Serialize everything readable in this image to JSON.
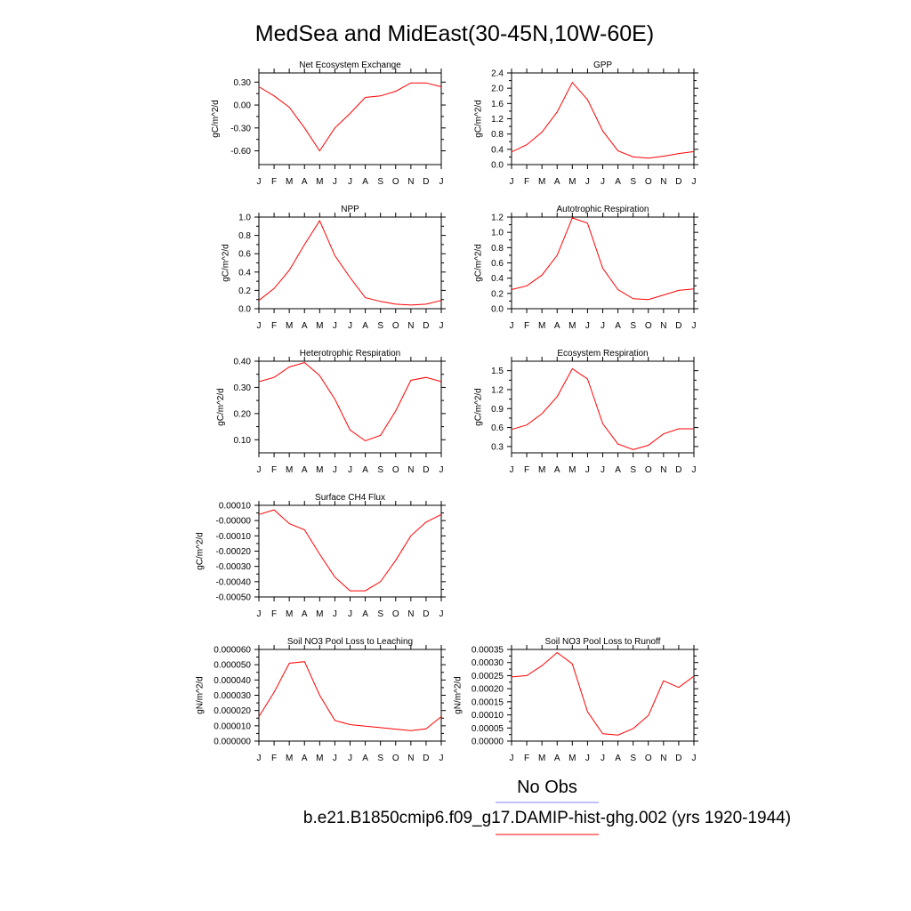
{
  "title": "MedSea and MidEast(30-45N,10W-60E)",
  "months": [
    "J",
    "F",
    "M",
    "A",
    "M",
    "J",
    "J",
    "A",
    "S",
    "O",
    "N",
    "D",
    "J"
  ],
  "legend": {
    "obs_label": "No Obs",
    "obs_color": "#8080ff",
    "model_label": "b.e21.B1850cmip6.f09_g17.DAMIP-hist-ghg.002 (yrs 1920-1944)",
    "model_color": "#ff0000"
  },
  "chart_data": [
    {
      "type": "line",
      "title": "Net Ecosystem Exchange",
      "ylabel": "gC/m^2/d",
      "ylim": [
        -0.78,
        0.42
      ],
      "yticks": [
        0.3,
        0.0,
        -0.3,
        -0.6
      ],
      "yticklabels": [
        "0.30",
        "0.00",
        "-0.30",
        "-0.60"
      ],
      "x": [
        "J",
        "F",
        "M",
        "A",
        "M",
        "J",
        "J",
        "A",
        "S",
        "O",
        "N",
        "D",
        "J"
      ],
      "series": [
        {
          "color": "#ff0000",
          "values": [
            0.24,
            0.12,
            -0.03,
            -0.3,
            -0.6,
            -0.3,
            -0.11,
            0.1,
            0.12,
            0.18,
            0.29,
            0.29,
            0.24
          ]
        }
      ]
    },
    {
      "type": "line",
      "title": "GPP",
      "ylabel": "gC/m^2/d",
      "ylim": [
        0.0,
        2.4
      ],
      "yticks": [
        0.0,
        0.4,
        0.8,
        1.2,
        1.6,
        2.0,
        2.4
      ],
      "yticklabels": [
        "0.0",
        "0.4",
        "0.8",
        "1.2",
        "1.6",
        "2.0",
        "2.4"
      ],
      "x": [
        "J",
        "F",
        "M",
        "A",
        "M",
        "J",
        "J",
        "A",
        "S",
        "O",
        "N",
        "D",
        "J"
      ],
      "series": [
        {
          "color": "#ff0000",
          "values": [
            0.33,
            0.52,
            0.85,
            1.38,
            2.15,
            1.7,
            0.88,
            0.36,
            0.2,
            0.17,
            0.22,
            0.29,
            0.34
          ]
        }
      ]
    },
    {
      "type": "line",
      "title": "NPP",
      "ylabel": "gC/m^2/d",
      "ylim": [
        0.0,
        1.0
      ],
      "yticks": [
        0.0,
        0.2,
        0.4,
        0.6,
        0.8,
        1.0
      ],
      "yticklabels": [
        "0.0",
        "0.2",
        "0.4",
        "0.6",
        "0.8",
        "1.0"
      ],
      "x": [
        "J",
        "F",
        "M",
        "A",
        "M",
        "J",
        "J",
        "A",
        "S",
        "O",
        "N",
        "D",
        "J"
      ],
      "series": [
        {
          "color": "#ff0000",
          "values": [
            0.09,
            0.22,
            0.42,
            0.7,
            0.96,
            0.58,
            0.34,
            0.12,
            0.08,
            0.05,
            0.04,
            0.05,
            0.09
          ]
        }
      ]
    },
    {
      "type": "line",
      "title": "Autotrophic Respiration",
      "ylabel": "gC/m^2/d",
      "ylim": [
        0.0,
        1.2
      ],
      "yticks": [
        0.0,
        0.2,
        0.4,
        0.6,
        0.8,
        1.0,
        1.2
      ],
      "yticklabels": [
        "0.0",
        "0.2",
        "0.4",
        "0.6",
        "0.8",
        "1.0",
        "1.2"
      ],
      "x": [
        "J",
        "F",
        "M",
        "A",
        "M",
        "J",
        "J",
        "A",
        "S",
        "O",
        "N",
        "D",
        "J"
      ],
      "series": [
        {
          "color": "#ff0000",
          "values": [
            0.25,
            0.3,
            0.44,
            0.7,
            1.19,
            1.12,
            0.53,
            0.25,
            0.13,
            0.12,
            0.18,
            0.24,
            0.26
          ]
        }
      ]
    },
    {
      "type": "line",
      "title": "Heterotrophic Respiration",
      "ylabel": "gC/m^2/d",
      "ylim": [
        0.05,
        0.4
      ],
      "yticks": [
        0.1,
        0.2,
        0.3,
        0.4
      ],
      "yticklabels": [
        "0.10",
        "0.20",
        "0.30",
        "0.40"
      ],
      "x": [
        "J",
        "F",
        "M",
        "A",
        "M",
        "J",
        "J",
        "A",
        "S",
        "O",
        "N",
        "D",
        "J"
      ],
      "series": [
        {
          "color": "#ff0000",
          "values": [
            0.322,
            0.338,
            0.378,
            0.395,
            0.345,
            0.255,
            0.137,
            0.096,
            0.117,
            0.21,
            0.327,
            0.338,
            0.322
          ]
        }
      ]
    },
    {
      "type": "line",
      "title": "Ecosystem Respiration",
      "ylabel": "gC/m^2/d",
      "ylim": [
        0.2,
        1.65
      ],
      "yticks": [
        0.3,
        0.6,
        0.9,
        1.2,
        1.5
      ],
      "yticklabels": [
        "0.3",
        "0.6",
        "0.9",
        "1.2",
        "1.5"
      ],
      "x": [
        "J",
        "F",
        "M",
        "A",
        "M",
        "J",
        "J",
        "A",
        "S",
        "O",
        "N",
        "D",
        "J"
      ],
      "series": [
        {
          "color": "#ff0000",
          "values": [
            0.57,
            0.64,
            0.82,
            1.09,
            1.53,
            1.37,
            0.66,
            0.34,
            0.25,
            0.32,
            0.5,
            0.58,
            0.58
          ]
        }
      ]
    },
    {
      "type": "line",
      "title": "Surface CH4 Flux",
      "ylabel": "gC/m^2/d",
      "ylim": [
        -0.0005,
        0.0001
      ],
      "yticks": [
        0.0001,
        0.0,
        -0.0001,
        -0.0002,
        -0.0003,
        -0.0004,
        -0.0005
      ],
      "yticklabels": [
        "0.00010",
        "-0.00000",
        "-0.00010",
        "-0.00020",
        "-0.00030",
        "-0.00040",
        "-0.00050"
      ],
      "x": [
        "J",
        "F",
        "M",
        "A",
        "M",
        "J",
        "J",
        "A",
        "S",
        "O",
        "N",
        "D",
        "J"
      ],
      "series": [
        {
          "color": "#ff0000",
          "values": [
            4e-05,
            7e-05,
            -2e-05,
            -6e-05,
            -0.00022,
            -0.00037,
            -0.00046,
            -0.00046,
            -0.0004,
            -0.00026,
            -0.0001,
            -1e-05,
            4e-05
          ]
        }
      ]
    },
    {
      "type": "line",
      "title": "Soil NO3 Pool Loss to Leaching",
      "ylabel": "gN/m^2/d",
      "ylim": [
        0.0,
        6e-05
      ],
      "yticks": [
        0.0,
        1e-05,
        2e-05,
        3e-05,
        4e-05,
        5e-05,
        6e-05
      ],
      "yticklabels": [
        "0.000000",
        "0.000010",
        "0.000020",
        "0.000030",
        "0.000040",
        "0.000050",
        "0.000060"
      ],
      "x": [
        "J",
        "F",
        "M",
        "A",
        "M",
        "J",
        "J",
        "A",
        "S",
        "O",
        "N",
        "D",
        "J"
      ],
      "series": [
        {
          "color": "#ff0000",
          "values": [
            1.6e-05,
            3.2e-05,
            5.1e-05,
            5.2e-05,
            3e-05,
            1.35e-05,
            1.08e-05,
            9.8e-06,
            8.8e-06,
            7.8e-06,
            6.8e-06,
            8e-06,
            1.6e-05
          ]
        }
      ]
    },
    {
      "type": "line",
      "title": "Soil NO3 Pool Loss to Runoff",
      "ylabel": "gN/m^2/d",
      "ylim": [
        0.0,
        0.00035
      ],
      "yticks": [
        0.0,
        5e-05,
        0.0001,
        0.00015,
        0.0002,
        0.00025,
        0.0003,
        0.00035
      ],
      "yticklabels": [
        "0.00000",
        "0.00005",
        "0.00010",
        "0.00015",
        "0.00020",
        "0.00025",
        "0.00030",
        "0.00035"
      ],
      "x": [
        "J",
        "F",
        "M",
        "A",
        "M",
        "J",
        "J",
        "A",
        "S",
        "O",
        "N",
        "D",
        "J"
      ],
      "series": [
        {
          "color": "#ff0000",
          "values": [
            0.000245,
            0.00025,
            0.000288,
            0.000338,
            0.000295,
            0.000112,
            2.8e-05,
            2.3e-05,
            4.8e-05,
            9.8e-05,
            0.00023,
            0.000205,
            0.000248
          ]
        }
      ]
    }
  ]
}
